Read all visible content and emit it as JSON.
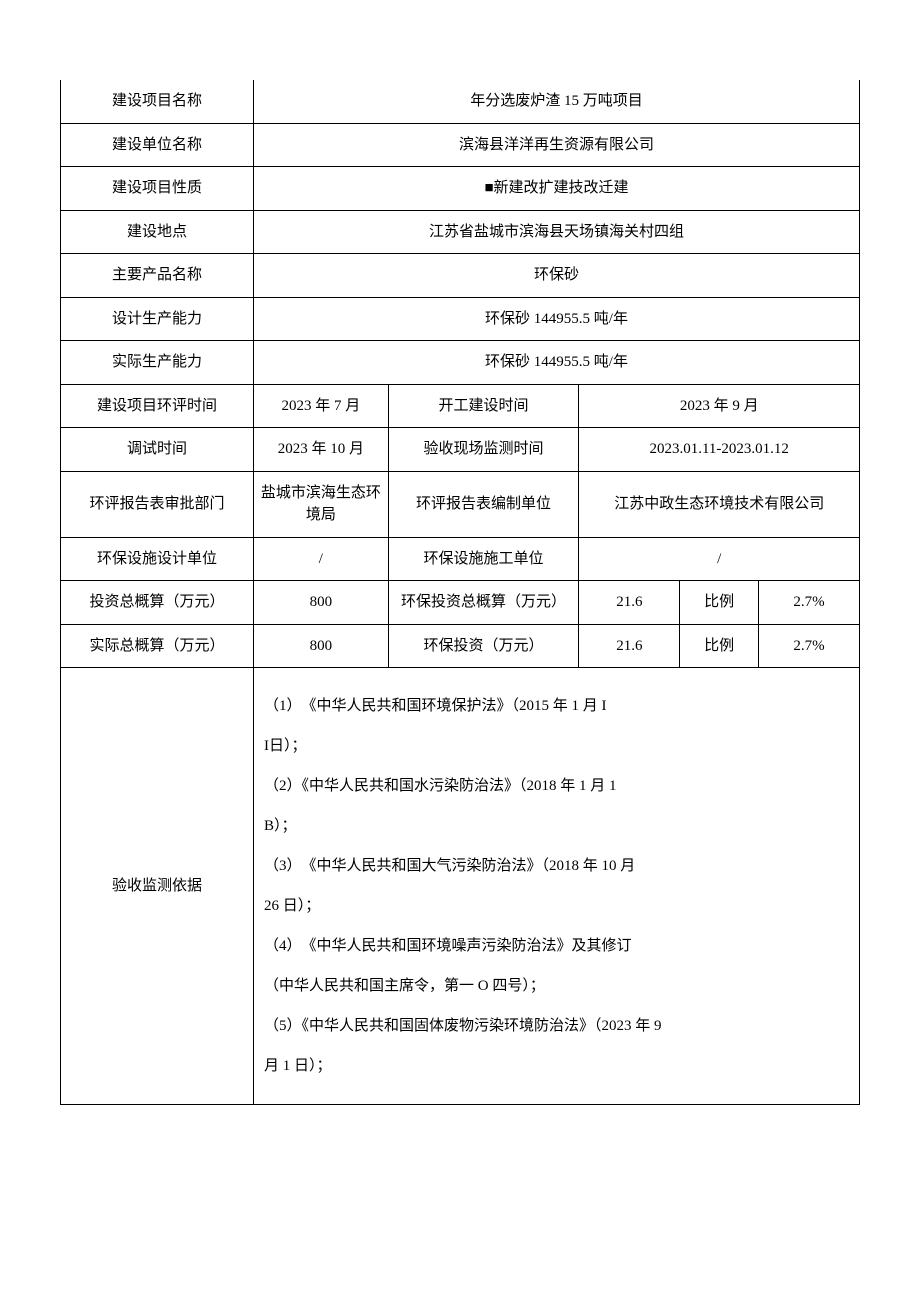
{
  "rows": {
    "r1": {
      "label": "建设项目名称",
      "value": "年分选废炉渣 15 万吨项目"
    },
    "r2": {
      "label": "建设单位名称",
      "value": "滨海县洋洋再生资源有限公司"
    },
    "r3": {
      "label": "建设项目性质",
      "value": "■新建改扩建技改迁建"
    },
    "r4": {
      "label": "建设地点",
      "value": "江苏省盐城市滨海县天场镇海关村四组"
    },
    "r5": {
      "label": "主要产品名称",
      "value": "环保砂"
    },
    "r6": {
      "label": "设计生产能力",
      "value": "环保砂 144955.5 吨/年"
    },
    "r7": {
      "label": "实际生产能力",
      "value": "环保砂 144955.5 吨/年"
    },
    "r8": {
      "label": "建设项目环评时间",
      "v1": "2023 年 7 月",
      "mid": "开工建设时间",
      "v2": "2023 年 9 月"
    },
    "r9": {
      "label": "调试时间",
      "v1": "2023 年 10 月",
      "mid": "验收现场监测时间",
      "v2": "2023.01.11-2023.01.12"
    },
    "r10": {
      "label": "环评报告表审批部门",
      "v1": "盐城市滨海生态环境局",
      "mid": "环评报告表编制单位",
      "v2": "江苏中政生态环境技术有限公司"
    },
    "r11": {
      "label": "环保设施设计单位",
      "v1": "/",
      "mid": "环保设施施工单位",
      "v2": "/"
    },
    "r12": {
      "label": "投资总概算（万元）",
      "v1": "800",
      "mid": "环保投资总概算（万元）",
      "amt": "21.6",
      "ratio_label": "比例",
      "ratio": "2.7%"
    },
    "r13": {
      "label": "实际总概算（万元）",
      "v1": "800",
      "mid": "环保投资（万元）",
      "amt": "21.6",
      "ratio_label": "比例",
      "ratio": "2.7%"
    },
    "basis": {
      "label": "验收监测依据",
      "p1": "（1）　《中华人民共和国环境保护法》（2015 年 1 月 I",
      "p1b": "I日）；",
      "p2": "（2）《中华人民共和国水污染防治法》（2018 年 1 月 1",
      "p2b": "B）；",
      "p3": "（3）　《中华人民共和国大气污染防治法》（2018 年 10 月",
      "p3b": "26 日）；",
      "p4": "（4）　《中华人民共和国环境噪声污染防治法》及其修订",
      "p4b": "（中华人民共和国主席令，第一 O 四号）；",
      "p5": "（5）《中华人民共和国固体废物污染环境防治法》（2023 年 9",
      "p5b": "月 1 日）；"
    }
  }
}
